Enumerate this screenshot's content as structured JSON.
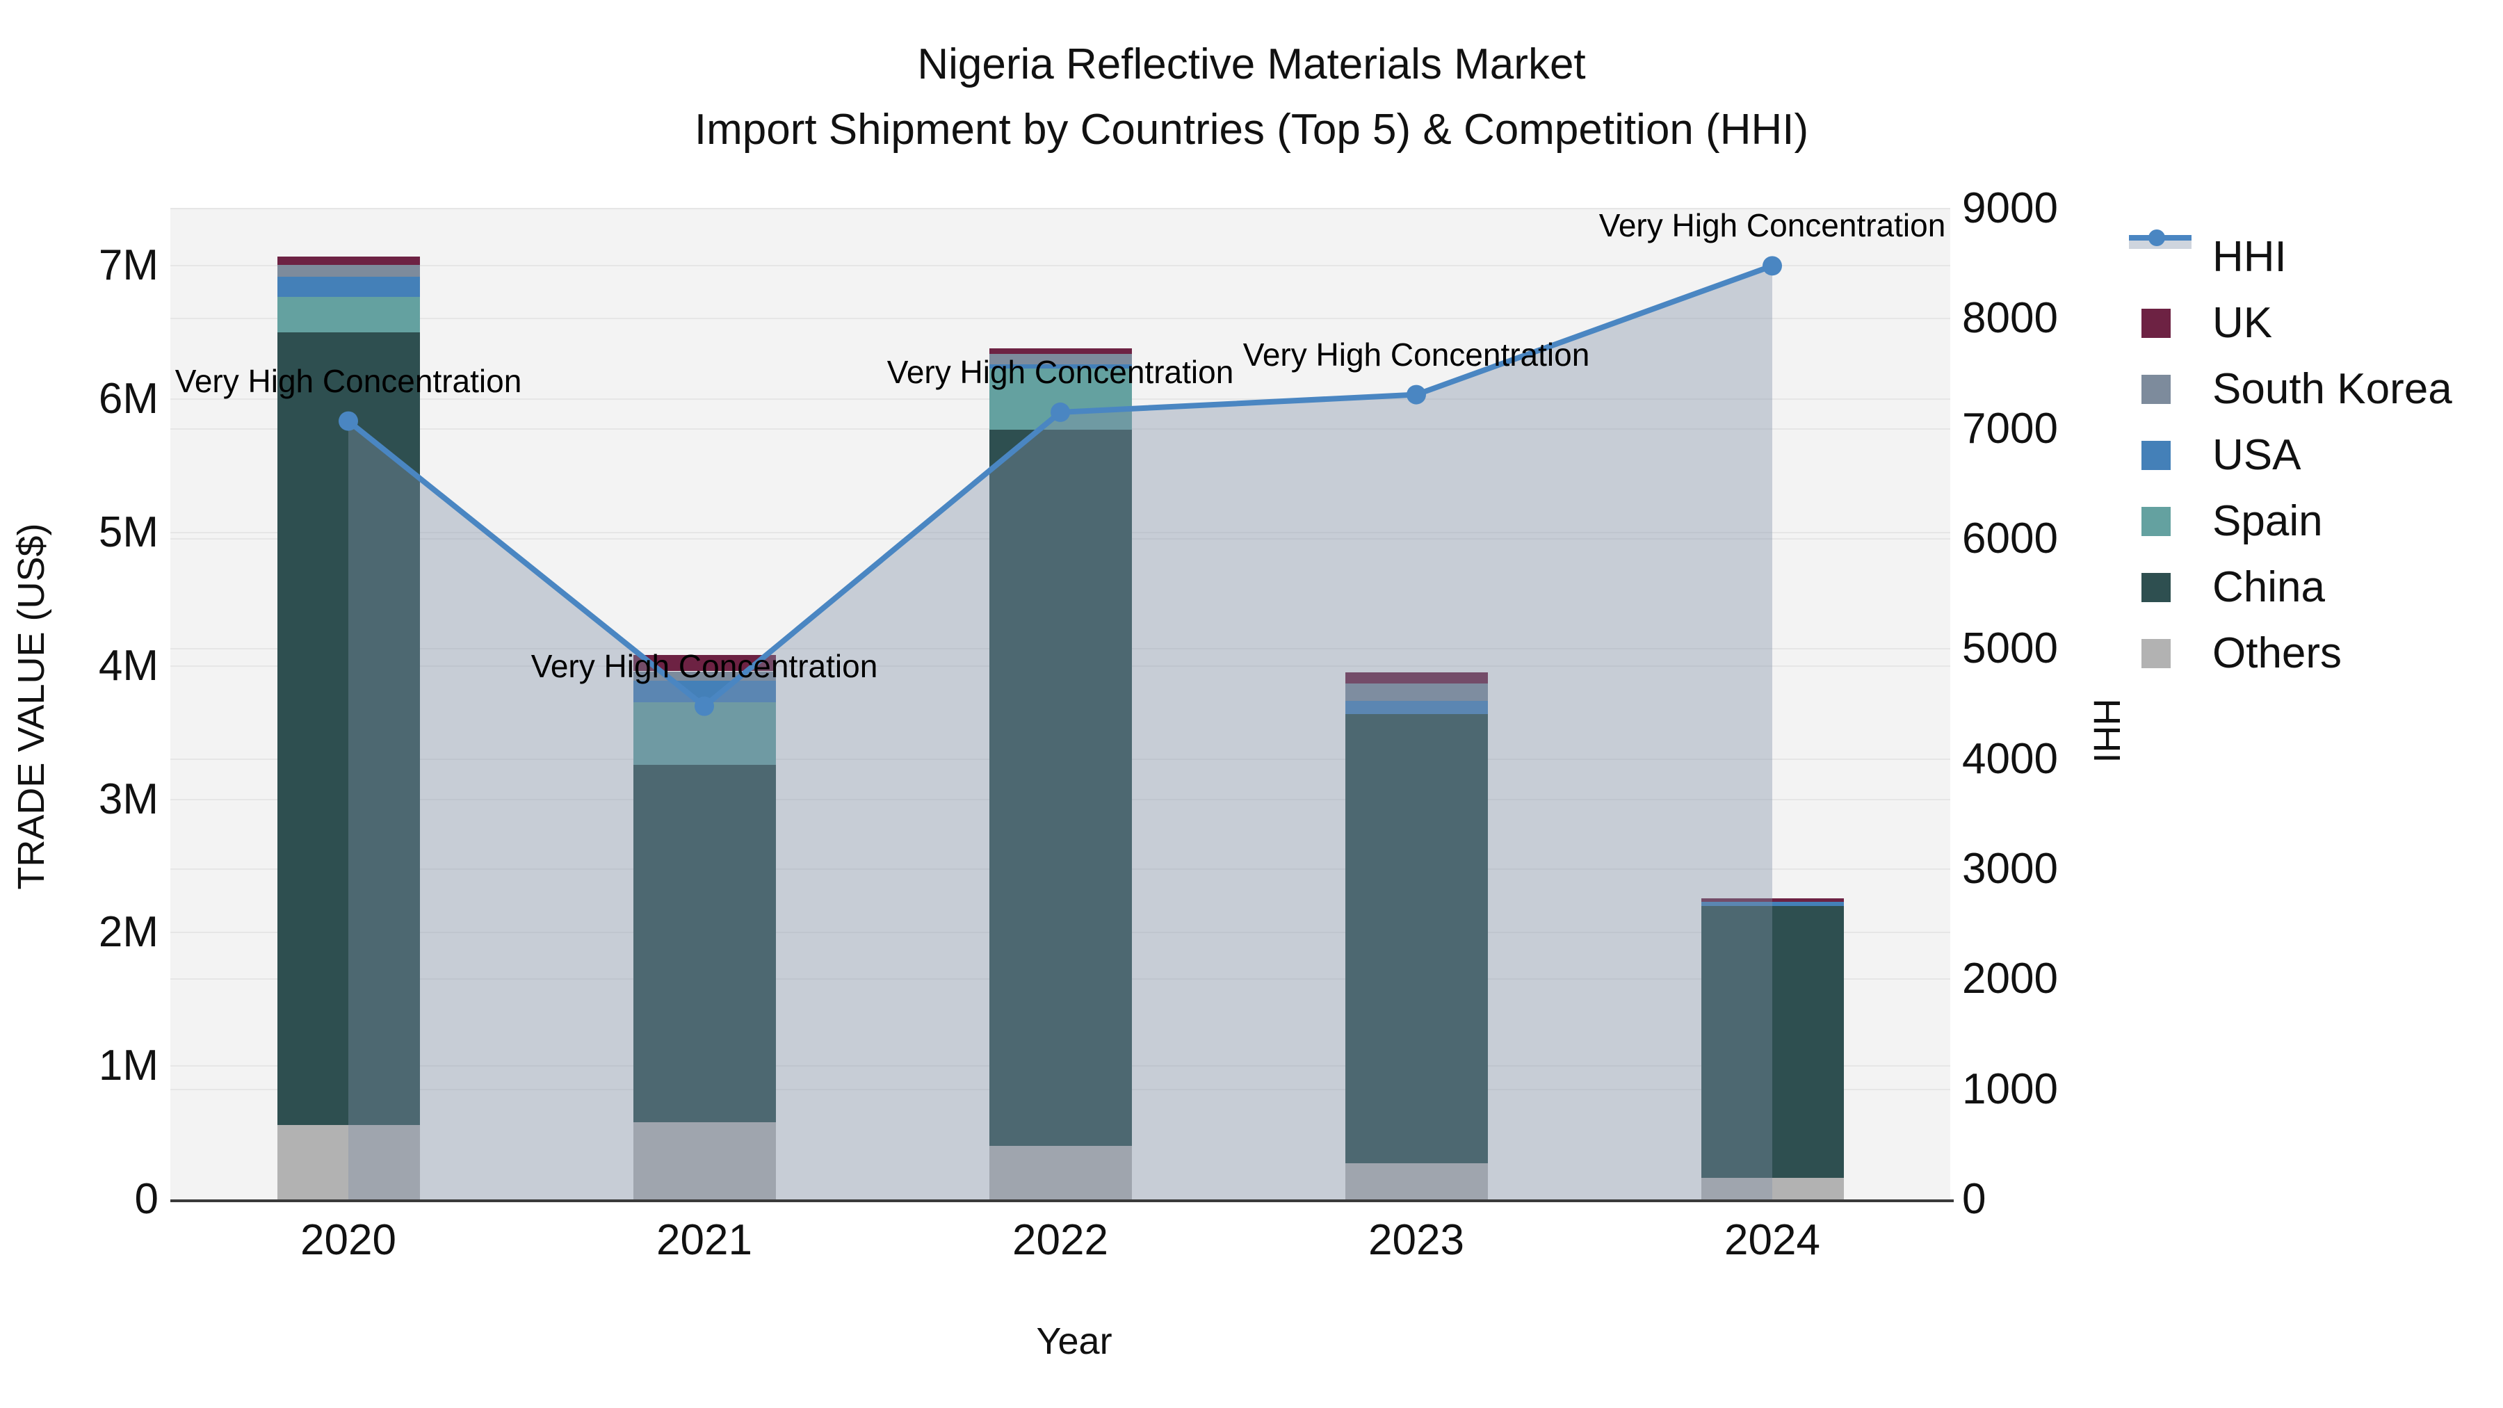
{
  "title": {
    "line1": "Nigeria Reflective Materials Market",
    "line2": "Import Shipment by Countries (Top 5) & Competition (HHI)"
  },
  "chart_data": {
    "type": "combo-stacked-bar-line",
    "x_title": "Year",
    "x_categories": [
      "2020",
      "2021",
      "2022",
      "2023",
      "2024"
    ],
    "y_left": {
      "title": "TRADE VALUE (US$)",
      "max": 7430000,
      "ticks": [
        {
          "label": "0",
          "value": 0
        },
        {
          "label": "1M",
          "value": 1000000
        },
        {
          "label": "2M",
          "value": 2000000
        },
        {
          "label": "3M",
          "value": 3000000
        },
        {
          "label": "4M",
          "value": 4000000
        },
        {
          "label": "5M",
          "value": 5000000
        },
        {
          "label": "6M",
          "value": 6000000
        },
        {
          "label": "7M",
          "value": 7000000
        }
      ]
    },
    "y_right": {
      "title": "HHI",
      "max": 9000,
      "ticks": [
        {
          "label": "0",
          "value": 0
        },
        {
          "label": "1000",
          "value": 1000
        },
        {
          "label": "2000",
          "value": 2000
        },
        {
          "label": "3000",
          "value": 3000
        },
        {
          "label": "4000",
          "value": 4000
        },
        {
          "label": "5000",
          "value": 5000
        },
        {
          "label": "6000",
          "value": 6000
        },
        {
          "label": "7000",
          "value": 7000
        },
        {
          "label": "8000",
          "value": 8000
        },
        {
          "label": "9000",
          "value": 9000
        }
      ]
    },
    "bar_series": [
      {
        "name": "Others",
        "color": "#b2b2b2",
        "values": [
          560000,
          580000,
          400000,
          270000,
          160000
        ]
      },
      {
        "name": "China",
        "color": "#2e4f50",
        "values": [
          5940000,
          2680000,
          5370000,
          3370000,
          2040000
        ]
      },
      {
        "name": "Spain",
        "color": "#64a1a0",
        "values": [
          270000,
          470000,
          460000,
          0,
          0
        ]
      },
      {
        "name": "USA",
        "color": "#4480b8",
        "values": [
          150000,
          160000,
          30000,
          100000,
          30000
        ]
      },
      {
        "name": "South Korea",
        "color": "#7d8b9c",
        "values": [
          90000,
          70000,
          80000,
          130000,
          0
        ]
      },
      {
        "name": "UK",
        "color": "#6d2243",
        "values": [
          60000,
          120000,
          40000,
          80000,
          30000
        ]
      }
    ],
    "line_series": {
      "name": "HHI",
      "color": "#4a86c2",
      "fill": "rgba(130,145,168,0.38)",
      "values": [
        7070,
        4480,
        7150,
        7310,
        8480
      ]
    },
    "annotations": [
      "Very High Concentration",
      "Very High Concentration",
      "Very High Concentration",
      "Very High Concentration",
      "Very High Concentration"
    ],
    "legend": [
      "HHI",
      "UK",
      "South Korea",
      "USA",
      "Spain",
      "China",
      "Others"
    ],
    "plot_bg_color": "#f3f3f3",
    "grid_color": "#e6e6e6",
    "axis_line_color": "#3a3a3a"
  }
}
